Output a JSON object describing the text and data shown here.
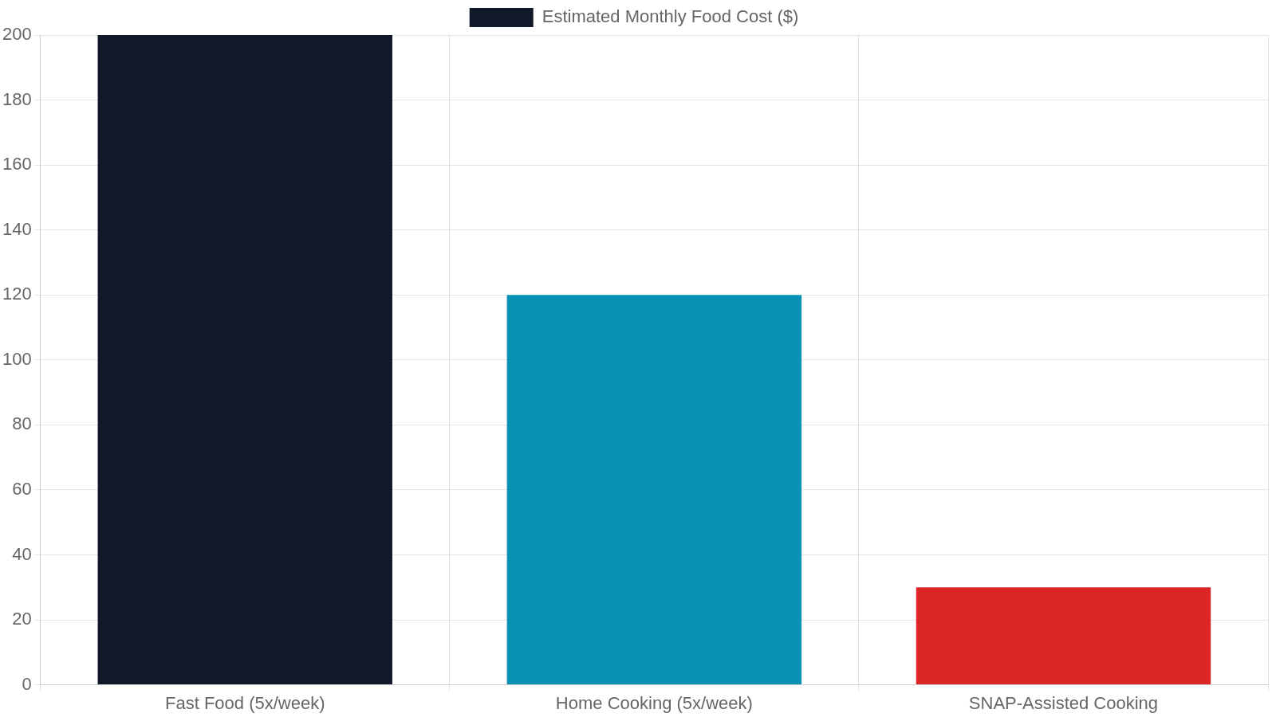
{
  "chart_data": {
    "type": "bar",
    "categories": [
      "Fast Food (5x/week)",
      "Home Cooking (5x/week)",
      "SNAP-Assisted Cooking"
    ],
    "series": [
      {
        "name": "Estimated Monthly Food Cost ($)",
        "colors": [
          "#111827",
          "#0891b2",
          "#dc2626"
        ],
        "values": [
          200,
          120,
          30
        ]
      }
    ],
    "ylim": [
      0,
      200
    ],
    "yticks": [
      0,
      20,
      40,
      60,
      80,
      100,
      120,
      140,
      160,
      180,
      200
    ],
    "grid": true,
    "legend": "top"
  }
}
